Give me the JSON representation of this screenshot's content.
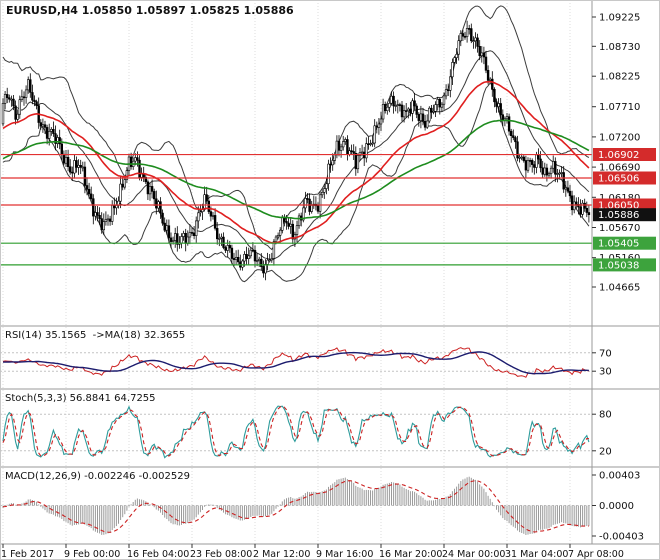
{
  "window": {
    "title": "EURUSD,H4 1.05850 1.05897 1.05825 1.05886"
  },
  "colors": {
    "background": "#ffffff",
    "grid": "#dcdcdc",
    "panel_border": "#9a9a9a",
    "axis_text": "#111111",
    "candle_up": "#ffffff",
    "candle_down": "#000000",
    "candle_outline": "#000000",
    "bollinger": "#3c3c3c",
    "ma_red": "#e01f1f",
    "ma_green": "#1e8c1e",
    "level_red": "#e23131",
    "level_green": "#2f9e2f",
    "badge_red": "#d42b2b",
    "badge_green": "#3da33d",
    "badge_current": "#111111",
    "rsi_line": "#cc2222",
    "rsi_ma": "#1c1c6e",
    "stoch_k": "#2e9c9c",
    "stoch_d": "#cc2222",
    "macd_hist": "#9a9a9a",
    "macd_signal": "#cc2222"
  },
  "chart_data": {
    "type": "candlestick",
    "symbol": "EURUSD",
    "timeframe": "H4",
    "ohlc_current": {
      "open": "1.05850",
      "high": "1.05897",
      "low": "1.05825",
      "close": "1.05886"
    },
    "x_labels": [
      "1 Feb 2017",
      "9 Feb 00:00",
      "16 Feb 04:00",
      "23 Feb 08:00",
      "2 Mar 12:00",
      "9 Mar 16:00",
      "16 Mar 20:00",
      "24 Mar 00:00",
      "31 Mar 04:00",
      "7 Apr 08:00"
    ],
    "price_axis_labels": [
      "1.09225",
      "1.08730",
      "1.08225",
      "1.07710",
      "1.07200",
      "1.06690",
      "1.06180",
      "1.05670",
      "1.05160",
      "1.04665"
    ],
    "level_lines": [
      {
        "price": 1.06902,
        "label": "1.06902",
        "type": "resistance",
        "color": "red"
      },
      {
        "price": 1.06506,
        "label": "1.06506",
        "type": "resistance",
        "color": "red"
      },
      {
        "price": 1.0605,
        "label": "1.06050",
        "type": "resistance",
        "color": "red"
      },
      {
        "price": 1.05405,
        "label": "1.05405",
        "type": "support",
        "color": "green"
      },
      {
        "price": 1.05038,
        "label": "1.05038",
        "type": "support",
        "color": "green"
      }
    ],
    "current_price": {
      "value": 1.05886,
      "label": "1.05886"
    },
    "candles": {
      "count": 280,
      "close_anchors": [
        [
          0,
          1.077
        ],
        [
          3,
          1.079
        ],
        [
          6,
          1.0762
        ],
        [
          9,
          1.0788
        ],
        [
          12,
          1.08
        ],
        [
          15,
          1.0775
        ],
        [
          18,
          1.0748
        ],
        [
          21,
          1.073
        ],
        [
          24,
          1.0718
        ],
        [
          27,
          1.0702
        ],
        [
          30,
          1.0682
        ],
        [
          33,
          1.0665
        ],
        [
          36,
          1.067
        ],
        [
          39,
          1.0645
        ],
        [
          42,
          1.0615
        ],
        [
          45,
          1.0585
        ],
        [
          48,
          1.0563
        ],
        [
          51,
          1.0585
        ],
        [
          54,
          1.0615
        ],
        [
          57,
          1.0642
        ],
        [
          60,
          1.0668
        ],
        [
          63,
          1.068
        ],
        [
          66,
          1.0662
        ],
        [
          69,
          1.0638
        ],
        [
          72,
          1.061
        ],
        [
          75,
          1.0588
        ],
        [
          78,
          1.0565
        ],
        [
          81,
          1.0548
        ],
        [
          84,
          1.0538
        ],
        [
          87,
          1.0548
        ],
        [
          90,
          1.0562
        ],
        [
          93,
          1.0588
        ],
        [
          96,
          1.0608
        ],
        [
          99,
          1.0588
        ],
        [
          102,
          1.0562
        ],
        [
          105,
          1.054
        ],
        [
          108,
          1.052
        ],
        [
          111,
          1.0506
        ],
        [
          114,
          1.0516
        ],
        [
          117,
          1.0528
        ],
        [
          120,
          1.0512
        ],
        [
          123,
          1.0496
        ],
        [
          126,
          1.0512
        ],
        [
          129,
          1.0538
        ],
        [
          132,
          1.0562
        ],
        [
          135,
          1.0578
        ],
        [
          138,
          1.056
        ],
        [
          141,
          1.058
        ],
        [
          144,
          1.0605
        ],
        [
          147,
          1.0598
        ],
        [
          150,
          1.0612
        ],
        [
          153,
          1.0638
        ],
        [
          156,
          1.0668
        ],
        [
          159,
          1.0698
        ],
        [
          162,
          1.0718
        ],
        [
          165,
          1.07
        ],
        [
          168,
          1.0672
        ],
        [
          171,
          1.069
        ],
        [
          174,
          1.0712
        ],
        [
          177,
          1.073
        ],
        [
          180,
          1.0748
        ],
        [
          183,
          1.0772
        ],
        [
          186,
          1.0788
        ],
        [
          189,
          1.077
        ],
        [
          192,
          1.0752
        ],
        [
          195,
          1.0772
        ],
        [
          198,
          1.0762
        ],
        [
          201,
          1.0745
        ],
        [
          204,
          1.0758
        ],
        [
          207,
          1.0772
        ],
        [
          210,
          1.079
        ],
        [
          213,
          1.0825
        ],
        [
          216,
          1.0862
        ],
        [
          219,
          1.0892
        ],
        [
          222,
          1.0905
        ],
        [
          225,
          1.0882
        ],
        [
          228,
          1.0852
        ],
        [
          231,
          1.082
        ],
        [
          234,
          1.0792
        ],
        [
          237,
          1.0762
        ],
        [
          240,
          1.0738
        ],
        [
          243,
          1.0712
        ],
        [
          246,
          1.0692
        ],
        [
          249,
          1.0678
        ],
        [
          252,
          1.0668
        ],
        [
          255,
          1.0678
        ],
        [
          258,
          1.0662
        ],
        [
          261,
          1.0672
        ],
        [
          264,
          1.0655
        ],
        [
          267,
          1.064
        ],
        [
          270,
          1.0622
        ],
        [
          273,
          1.0605
        ],
        [
          276,
          1.0592
        ],
        [
          279,
          1.05886
        ]
      ]
    },
    "overlays": {
      "bollinger": {
        "period": 20,
        "deviation": 2
      },
      "ma_red": {
        "period": 46,
        "seed": 1.069
      },
      "ma_green": {
        "period": 110,
        "seed": 1.0645
      }
    },
    "indicators": [
      {
        "id": "rsi",
        "label": "RSI(14) 35.1565  ->MA(18) 32.3655",
        "value": 35.1565,
        "ma_value": 32.3655,
        "levels": [
          {
            "v": 70,
            "label": "70"
          },
          {
            "v": 30,
            "label": "30"
          }
        ]
      },
      {
        "id": "stoch",
        "label": "Stoch(5,3,3) 56.8841 64.7255",
        "k": 56.8841,
        "d": 64.7255,
        "levels": [
          {
            "v": 80,
            "label": "80"
          },
          {
            "v": 20,
            "label": "20"
          }
        ]
      },
      {
        "id": "macd",
        "label": "MACD(12,26,9) -0.002246 -0.002529",
        "value": -0.002246,
        "signal": -0.002529,
        "axis": [
          {
            "v": 0.00403,
            "label": "0.00403"
          },
          {
            "v": 0,
            "label": "0.0000"
          },
          {
            "v": -0.00403,
            "label": "-0.00403"
          }
        ]
      }
    ]
  }
}
